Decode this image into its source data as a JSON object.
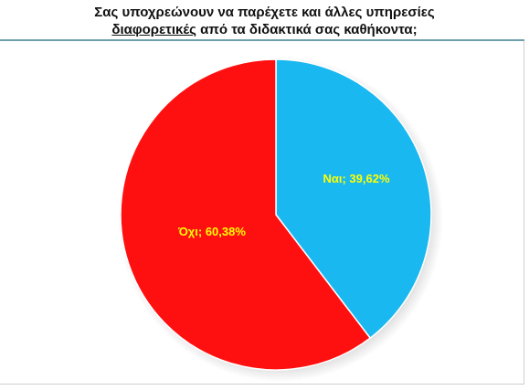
{
  "title": {
    "line1": "Σας υποχρεώνουν να παρέχετε και άλλες υπηρεσίες",
    "line2_underlined": "διαφορετικές",
    "line2_rest": " από τα διδακτικά σας καθήκοντα;"
  },
  "colors": {
    "yes": "#1ab8f0",
    "no": "#ff1010",
    "label": "#ffff00",
    "rule": "#6fa0ad"
  },
  "chart_data": {
    "type": "pie",
    "title": "Σας υποχρεώνουν να παρέχετε και άλλες υπηρεσίες διαφορετικές από τα διδακτικά σας καθήκοντα;",
    "categories": [
      "Ναι",
      "Όχι"
    ],
    "values": [
      39.62,
      60.38
    ],
    "labels": [
      "Ναι; 39,62%",
      "Όχι; 60,38%"
    ],
    "start": "12 o'clock",
    "direction": "clockwise"
  }
}
